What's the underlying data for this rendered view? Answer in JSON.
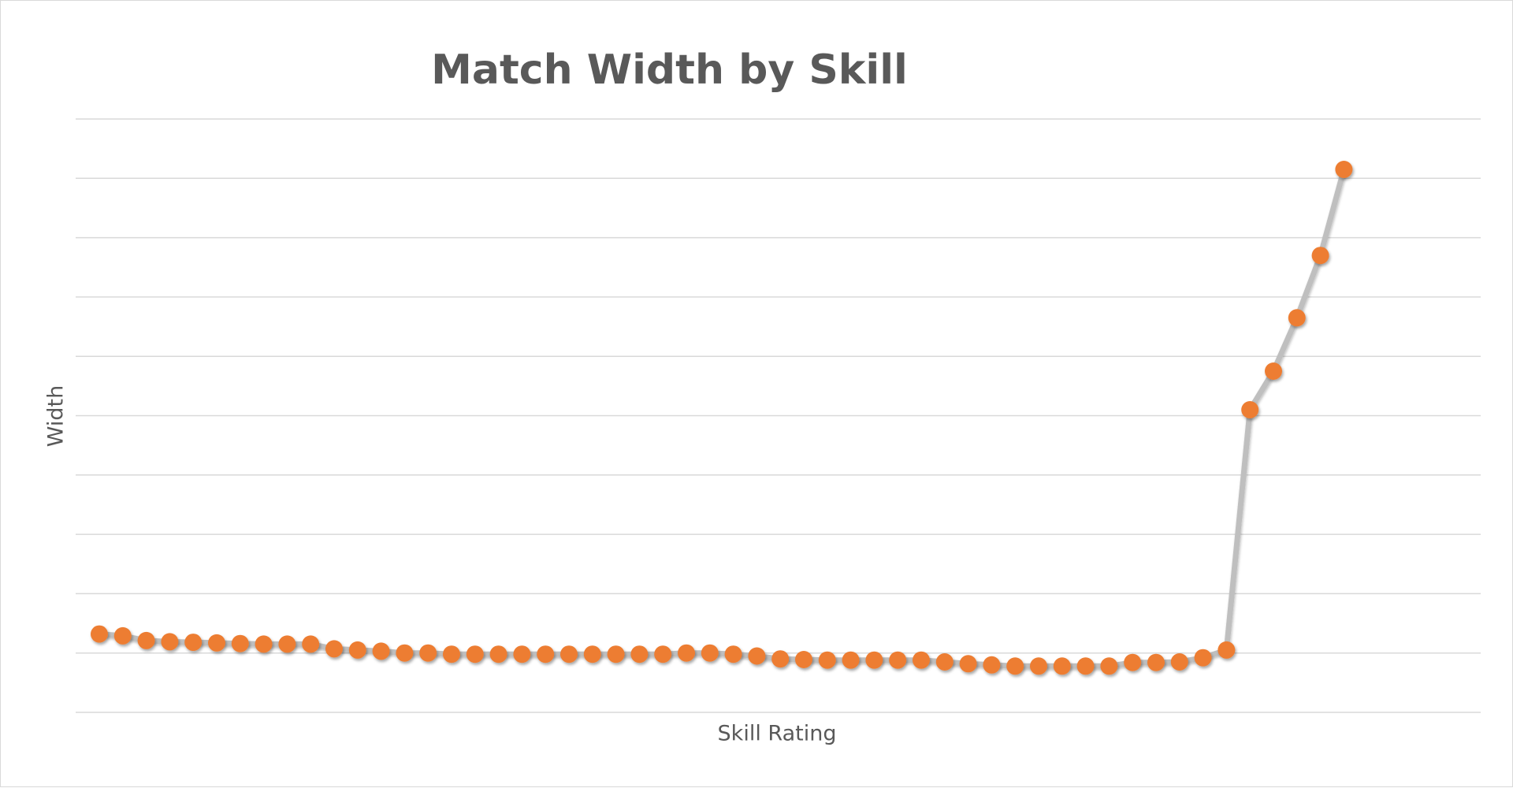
{
  "chart_data": {
    "type": "line",
    "title": "Match Width by Skill",
    "xlabel": "Skill Rating",
    "ylabel": "Width",
    "grid": true,
    "ylim": [
      0,
      10
    ],
    "series": [
      {
        "values": [
          1.32,
          1.29,
          1.21,
          1.19,
          1.18,
          1.17,
          1.16,
          1.15,
          1.15,
          1.15,
          1.07,
          1.05,
          1.03,
          1.0,
          1.0,
          0.98,
          0.98,
          0.98,
          0.98,
          0.98,
          0.98,
          0.98,
          0.98,
          0.98,
          0.98,
          1.0,
          1.0,
          0.98,
          0.95,
          0.9,
          0.89,
          0.88,
          0.88,
          0.88,
          0.88,
          0.88,
          0.85,
          0.82,
          0.8,
          0.78,
          0.78,
          0.78,
          0.78,
          0.78,
          0.84,
          0.84,
          0.85,
          0.92,
          1.05,
          5.1,
          5.75,
          6.65,
          7.7,
          9.15
        ],
        "color": "#ed7d31",
        "line_color": "#bfbfbf"
      }
    ]
  }
}
